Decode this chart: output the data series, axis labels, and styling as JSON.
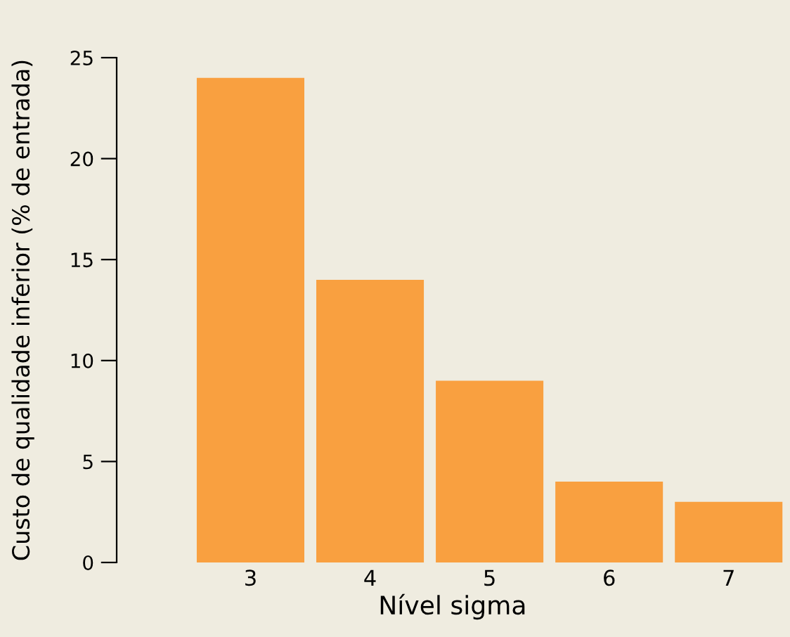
{
  "chart_data": {
    "type": "bar",
    "xlabel": "Nível sigma",
    "ylabel": "Custo de qualidade inferior (% de entrada)",
    "categories": [
      "3",
      "4",
      "5",
      "6",
      "7"
    ],
    "values": [
      24,
      14,
      9,
      4,
      3
    ],
    "color": "#f9a040",
    "ylim": [
      0,
      25
    ],
    "yticks": [
      0,
      5,
      10,
      15,
      20,
      25
    ],
    "grid": false
  }
}
